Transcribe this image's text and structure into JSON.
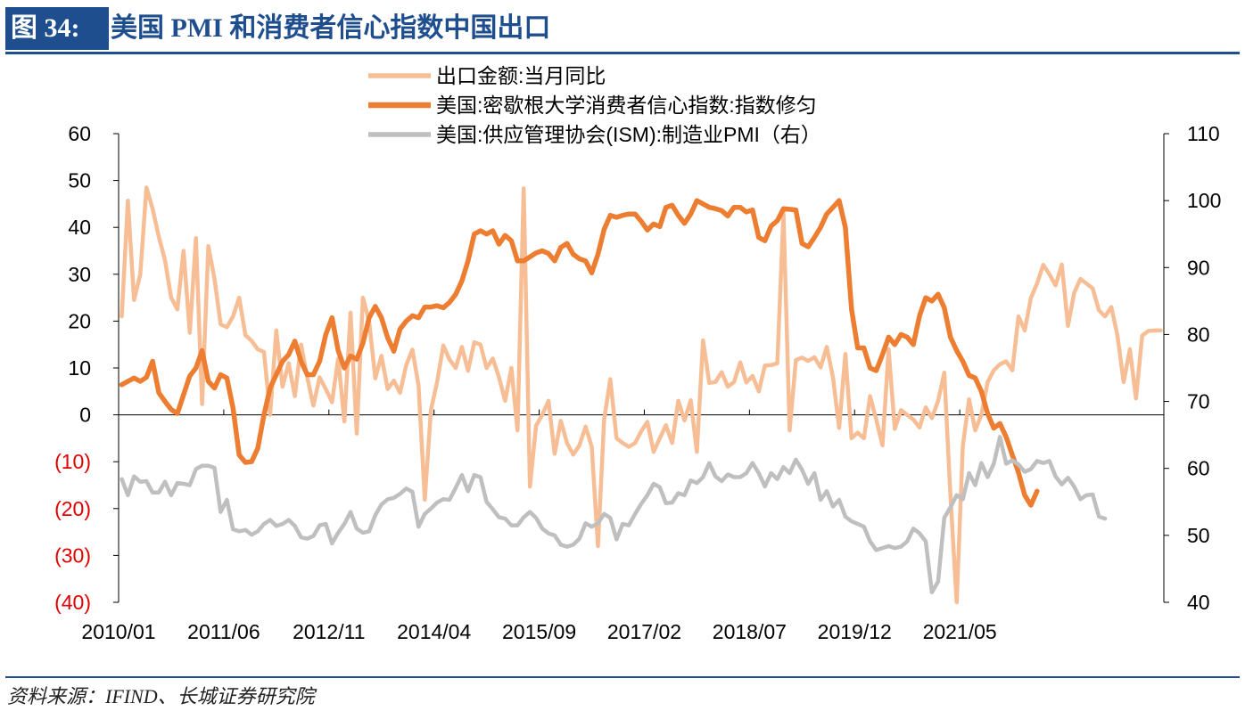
{
  "figure": {
    "label": "图 34:",
    "title": "美国 PMI 和消费者信心指数中国出口"
  },
  "source": "资料来源：IFIND、长城证券研究院",
  "colors": {
    "export": "#F7BE96",
    "sentiment": "#ED7D31",
    "pmi": "#BFBFBF",
    "negative_tick": "#E00000",
    "brand": "#1F4E8F"
  },
  "chart_data": {
    "type": "line",
    "title": "",
    "x_start": "2010/01",
    "x_end": "2022/06",
    "x_tick_labels": [
      "2010/01",
      "2011/06",
      "2012/11",
      "2014/04",
      "2015/09",
      "2017/02",
      "2018/07",
      "2019/12",
      "2021/05"
    ],
    "left_axis": {
      "ylim": [
        -40,
        60
      ],
      "ticks": [
        60,
        50,
        40,
        30,
        20,
        10,
        0,
        -10,
        -20,
        -30,
        -40
      ],
      "tick_labels": [
        "60",
        "50",
        "40",
        "30",
        "20",
        "10",
        "0",
        "(10)",
        "(20)",
        "(30)",
        "(40)"
      ]
    },
    "right_axis": {
      "ylim": [
        40,
        110
      ],
      "ticks": [
        110,
        100,
        90,
        80,
        70,
        60,
        50,
        40
      ],
      "tick_labels": [
        "110",
        "100",
        "90",
        "80",
        "70",
        "60",
        "50",
        "40"
      ]
    },
    "legend_position": "top-center",
    "series": [
      {
        "name": "出口金额:当月同比",
        "axis": "left",
        "values": [
          21,
          45.7,
          24.5,
          30,
          48.5,
          44,
          38,
          33,
          25,
          22.5,
          35,
          17.5,
          37.7,
          2.3,
          36,
          29,
          19.3,
          18.7,
          21,
          25,
          17,
          15.8,
          14,
          13.4,
          0,
          18,
          6,
          11,
          4,
          15,
          8,
          2,
          8,
          5.5,
          2.7,
          12,
          -1.4,
          21.8,
          -4,
          25,
          20,
          7.8,
          12.6,
          5.5,
          7.3,
          4.7,
          10.6,
          13.9,
          6.3,
          -18.1,
          1,
          7,
          14.8,
          11.8,
          10,
          14.5,
          9.4,
          15.5,
          15,
          10,
          12,
          8,
          3,
          10,
          -3.3,
          48.3,
          -15.3,
          -2.3,
          0,
          3,
          -8.3,
          -1.3,
          -6,
          -8.5,
          -6.5,
          -2.5,
          -6.8,
          -28,
          -1,
          7.6,
          -5,
          -6,
          -6.8,
          -6,
          -3.5,
          -1.5,
          -7.9,
          -5,
          -2.2,
          -6,
          3,
          -1.2,
          3.1,
          -7.9,
          15.9,
          6.8,
          7,
          9.1,
          6,
          7,
          11.2,
          6.9,
          8.3,
          5,
          10.5,
          10.6,
          11,
          43,
          -3.3,
          11.7,
          12.2,
          11.5,
          12.3,
          10.1,
          14.5,
          8,
          -2.8,
          13,
          -5,
          -3.8,
          -5,
          4,
          -1,
          -6.5,
          14,
          -3,
          1,
          0,
          -1,
          -2.7,
          1.6,
          -0.7,
          3,
          9,
          -17.2,
          -40,
          -6.6,
          3.3,
          -3.3,
          0,
          7,
          9.5,
          10.8,
          11.4,
          9.5,
          21,
          18,
          24.9,
          28,
          32,
          30,
          27.6,
          32.1,
          19,
          26,
          29,
          28,
          27,
          22.3,
          21,
          23,
          16.9,
          7,
          14,
          3.5,
          16.9,
          17.9,
          18,
          18
        ],
        "color": "#F7BE96"
      },
      {
        "name": "美国:密歇根大学消费者信心指数:指数修匀",
        "axis": "right",
        "values": [
          72.5,
          73,
          73.5,
          73,
          73.6,
          76,
          71.3,
          70,
          68.8,
          68.2,
          71,
          73.8,
          75,
          77.6,
          73,
          72,
          74,
          73.5,
          69,
          62,
          60.9,
          61,
          63,
          68,
          72,
          74,
          76,
          77,
          79,
          76,
          74,
          74,
          76,
          80,
          82.5,
          77.6,
          75,
          76.8,
          76.3,
          78.7,
          82.5,
          84.2,
          82.5,
          79.5,
          77.5,
          80.8,
          82,
          82.8,
          82.5,
          84.1,
          84.1,
          84.3,
          84,
          84.8,
          86,
          88,
          91,
          95,
          95.5,
          95,
          95.5,
          93.5,
          94.8,
          94,
          91,
          91,
          91.6,
          92.2,
          92.5,
          92.1,
          91,
          93,
          93.6,
          92,
          91.3,
          91,
          89.2,
          92,
          95.7,
          97.8,
          97.5,
          97.8,
          98,
          98,
          96.9,
          95.6,
          96.5,
          96.1,
          99,
          99.3,
          97.8,
          96.6,
          98,
          100,
          99.5,
          99,
          98.8,
          98.5,
          97.7,
          99,
          99,
          98.3,
          98.6,
          94.5,
          94,
          96.2,
          97,
          98.8,
          98.7,
          98.6,
          93.6,
          93.1,
          94.5,
          96,
          98,
          99,
          100,
          96,
          83.8,
          78,
          78,
          75,
          74.6,
          77,
          79.6,
          78.5,
          80,
          79.6,
          78.5,
          82.8,
          85.5,
          85,
          86,
          84,
          79.6,
          77.6,
          76,
          73.9,
          73.5,
          71.5,
          68.2,
          66,
          66.7,
          64.7,
          62,
          59.4,
          56,
          54.5,
          56.6
        ],
        "color": "#ED7D31"
      },
      {
        "name": "美国:供应管理协会(ISM):制造业PMI（右）",
        "axis": "right",
        "values": [
          58.4,
          56,
          58.8,
          58,
          58.1,
          56.4,
          56.4,
          58,
          56,
          57.8,
          57.7,
          57.5,
          59.9,
          60.4,
          60.4,
          60.1,
          53.5,
          55.3,
          50.9,
          50.6,
          50.8,
          50.1,
          50.6,
          51.7,
          52.3,
          51.4,
          51.7,
          52.3,
          51.4,
          49.7,
          49.5,
          49.9,
          51.5,
          51.7,
          48.8,
          50.4,
          51.7,
          53.5,
          51,
          50.4,
          50.6,
          53,
          54.6,
          55.4,
          55.6,
          56.2,
          57,
          56.5,
          51.3,
          53.2,
          54,
          54.9,
          55.4,
          55.3,
          57.1,
          59,
          56.6,
          59,
          58.7,
          55,
          53.9,
          52.7,
          52.5,
          51.5,
          51.5,
          52.7,
          53.5,
          52.6,
          51,
          50.3,
          50,
          48.6,
          48.3,
          48.6,
          49.5,
          51.8,
          51.3,
          51.8,
          53.2,
          52.6,
          49.4,
          51.7,
          51.5,
          53.2,
          54.7,
          56,
          57.7,
          57.2,
          54.8,
          54.9,
          56.3,
          56,
          58.2,
          57.8,
          58.7,
          60.8,
          58.8,
          58.1,
          59.1,
          58.7,
          58.7,
          59.3,
          60.8,
          59.3,
          57.3,
          59.3,
          58.4,
          60.2,
          59.3,
          61.3,
          59.8,
          57.7,
          59.3,
          55.3,
          56.6,
          54.3,
          55.3,
          52.8,
          52.1,
          51.7,
          51.3,
          49.1,
          47.8,
          48.1,
          48.4,
          48.1,
          48.3,
          49.1,
          51,
          50.3,
          49.1,
          41.5,
          43.1,
          52.6,
          54.2,
          56,
          55.4,
          59.3,
          57.5,
          60.8,
          58.7,
          60.7,
          64.7,
          60.7,
          61.2,
          60.6,
          59.5,
          59.9,
          61.1,
          60.8,
          61.1,
          58.8,
          57.6,
          58.6,
          57.3,
          55.4,
          56,
          56.1,
          52.8,
          52.5
        ],
        "color": "#BFBFBF"
      }
    ]
  }
}
